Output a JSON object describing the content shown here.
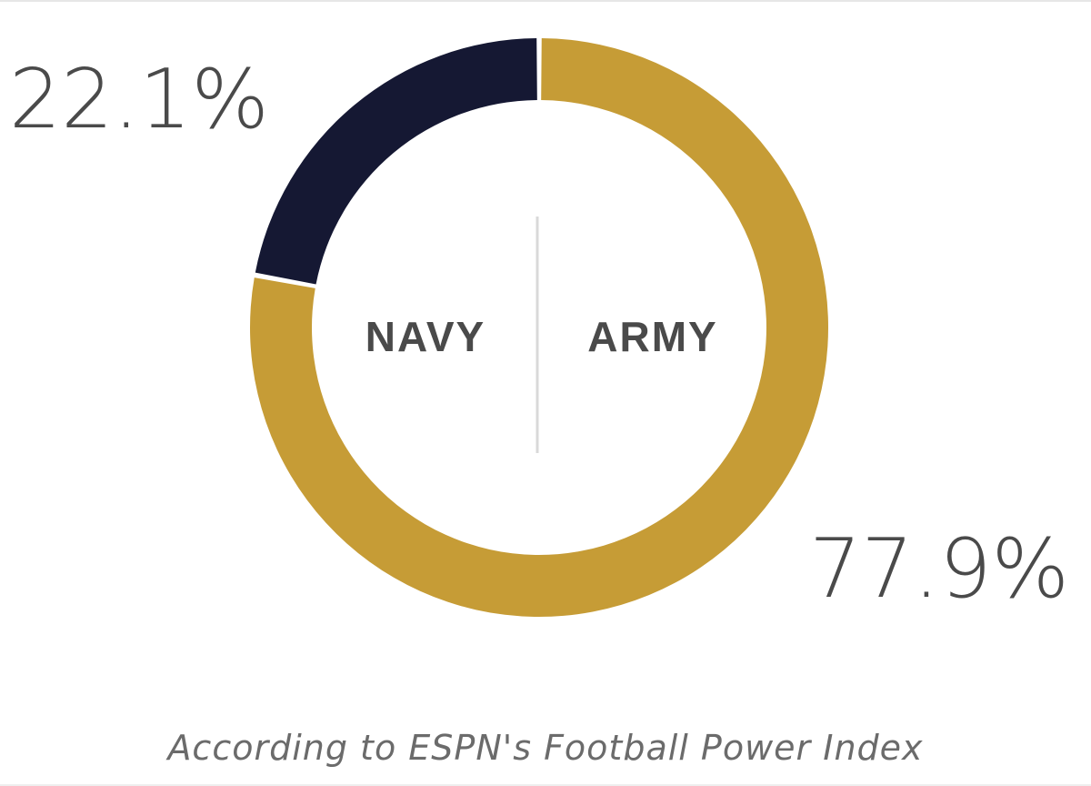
{
  "chart_data": {
    "type": "pie",
    "variant": "donut",
    "slices": [
      {
        "team": "NAVY",
        "value": 22.1,
        "label": "22.1%",
        "color": "#151833"
      },
      {
        "team": "ARMY",
        "value": 77.9,
        "label": "77.9%",
        "color": "#C69C36"
      }
    ],
    "caption": "According to ESPN's Football Power Index",
    "divider_color": "#d9d9d9",
    "text_color": "#4a4a4a"
  }
}
